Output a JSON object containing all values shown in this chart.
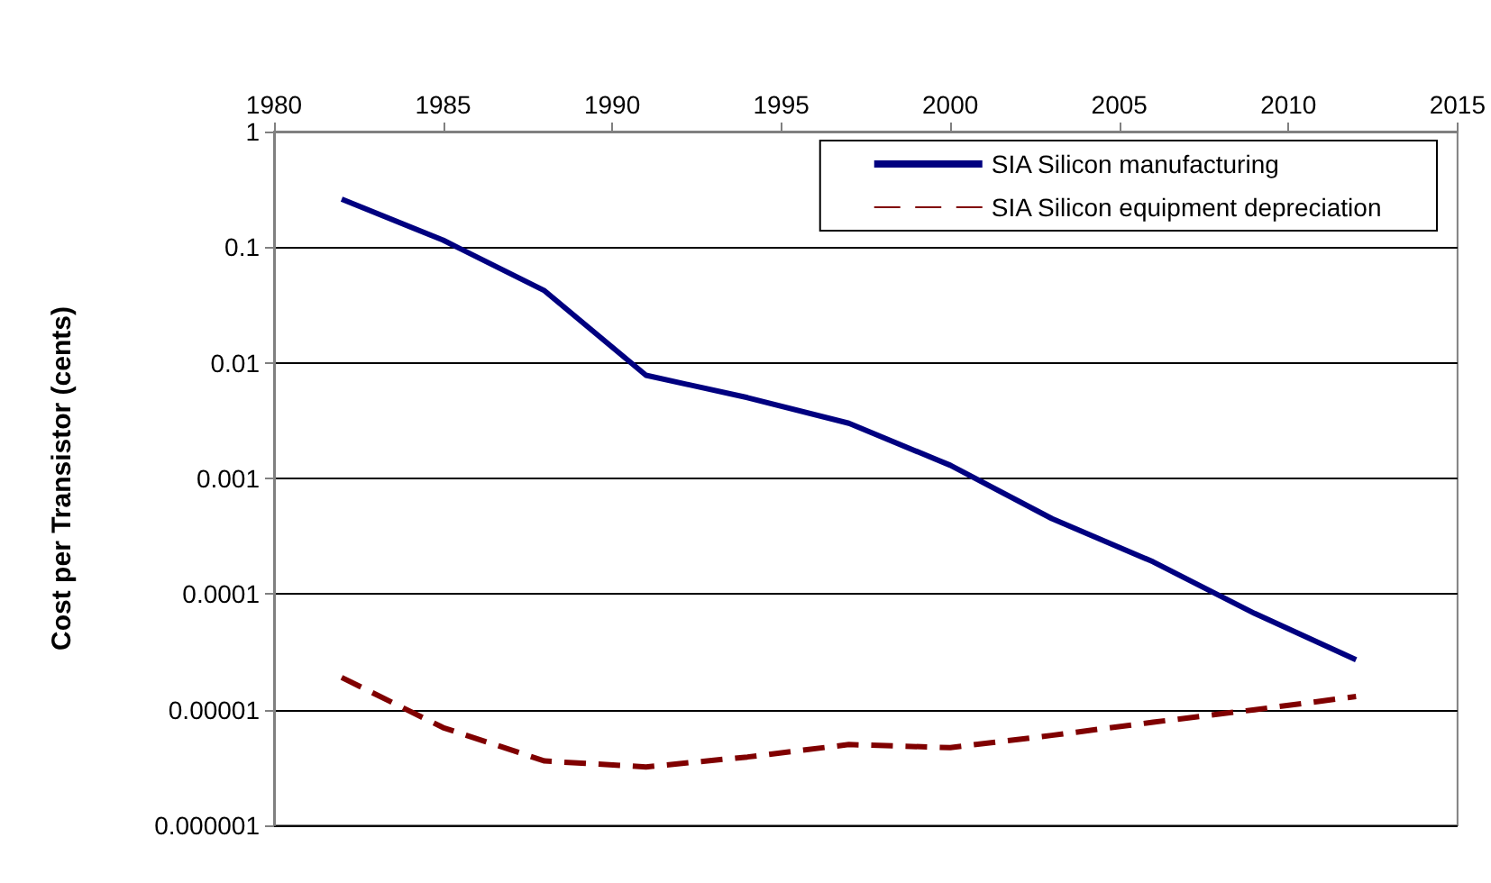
{
  "chart_data": {
    "type": "line",
    "ylabel": "Cost per Transistor (cents)",
    "x": [
      1982,
      1985,
      1988,
      1991,
      1994,
      1997,
      2000,
      2003,
      2006,
      2009,
      2012
    ],
    "series": [
      {
        "name": "SIA Silicon manufacturing",
        "color": "#000080",
        "line_style": "solid",
        "values": [
          0.26,
          0.115,
          0.042,
          0.0078,
          0.005,
          0.003,
          0.0013,
          0.00045,
          0.00019,
          6.8e-05,
          2.7e-05
        ]
      },
      {
        "name": "SIA Silicon equipment depreciation",
        "color": "#800000",
        "line_style": "dashed",
        "values": [
          1.9e-05,
          7e-06,
          3.6e-06,
          3.2e-06,
          3.9e-06,
          5e-06,
          4.7e-06,
          6e-06,
          7.8e-06,
          1e-05,
          1.3e-05
        ]
      }
    ],
    "xlim": [
      1980,
      2015
    ],
    "xticks": [
      1980,
      1985,
      1990,
      1995,
      2000,
      2005,
      2010,
      2015
    ],
    "ylim": [
      1e-06,
      1
    ],
    "yticks": [
      {
        "value": 1,
        "label": "1"
      },
      {
        "value": 0.1,
        "label": "0.1"
      },
      {
        "value": 0.01,
        "label": "0.01"
      },
      {
        "value": 0.001,
        "label": "0.001"
      },
      {
        "value": 0.0001,
        "label": "0.0001"
      },
      {
        "value": 1e-05,
        "label": "0.00001"
      },
      {
        "value": 1e-06,
        "label": "0.000001"
      }
    ],
    "log": "y",
    "grid": "y",
    "legend": "top right",
    "marker": "none"
  }
}
